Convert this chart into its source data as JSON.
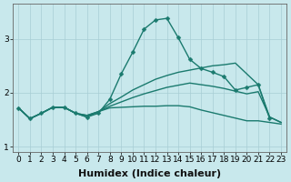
{
  "xlabel": "Humidex (Indice chaleur)",
  "background_color": "#c8e8ec",
  "grid_color": "#a8cdd4",
  "line_color": "#1a7a6e",
  "xlim": [
    -0.5,
    23.5
  ],
  "ylim": [
    0.9,
    3.65
  ],
  "xtick_labels": [
    "0",
    "1",
    "2",
    "3",
    "4",
    "5",
    "6",
    "7",
    "8",
    "9",
    "10",
    "11",
    "12",
    "13",
    "14",
    "15",
    "16",
    "17",
    "18",
    "19",
    "20",
    "21",
    "22",
    "23"
  ],
  "ytick_vals": [
    1,
    2,
    3
  ],
  "line1_x": [
    0,
    1,
    2,
    3,
    4,
    5,
    6,
    7,
    8,
    9,
    10,
    11,
    12,
    13,
    14,
    15,
    16,
    17,
    18,
    19,
    20,
    21,
    22
  ],
  "line1_y": [
    1.72,
    1.52,
    1.62,
    1.73,
    1.73,
    1.62,
    1.55,
    1.62,
    1.88,
    2.35,
    2.75,
    3.18,
    3.35,
    3.38,
    3.02,
    2.62,
    2.45,
    2.38,
    2.3,
    2.05,
    2.1,
    2.15,
    1.52
  ],
  "line2_x": [
    0,
    1,
    2,
    3,
    4,
    5,
    6,
    7,
    8,
    9,
    10,
    11,
    12,
    13,
    14,
    15,
    16,
    17,
    18,
    19,
    20,
    21,
    22,
    23
  ],
  "line2_y": [
    1.72,
    1.52,
    1.62,
    1.73,
    1.73,
    1.62,
    1.58,
    1.65,
    1.8,
    1.92,
    2.05,
    2.15,
    2.25,
    2.32,
    2.38,
    2.42,
    2.46,
    2.5,
    2.52,
    2.55,
    2.35,
    2.15,
    1.55,
    1.45
  ],
  "line3_x": [
    0,
    1,
    2,
    3,
    4,
    5,
    6,
    7,
    8,
    9,
    10,
    11,
    12,
    13,
    14,
    15,
    16,
    17,
    18,
    19,
    20,
    21,
    22,
    23
  ],
  "line3_y": [
    1.72,
    1.52,
    1.62,
    1.73,
    1.73,
    1.62,
    1.58,
    1.65,
    1.75,
    1.83,
    1.91,
    1.98,
    2.04,
    2.1,
    2.14,
    2.18,
    2.15,
    2.12,
    2.08,
    2.03,
    1.98,
    2.02,
    1.55,
    1.45
  ],
  "line4_x": [
    0,
    1,
    2,
    3,
    4,
    5,
    6,
    7,
    8,
    9,
    10,
    11,
    12,
    13,
    14,
    15,
    16,
    17,
    18,
    19,
    20,
    21,
    22,
    23
  ],
  "line4_y": [
    1.72,
    1.52,
    1.62,
    1.73,
    1.73,
    1.62,
    1.55,
    1.65,
    1.72,
    1.73,
    1.74,
    1.75,
    1.75,
    1.76,
    1.76,
    1.74,
    1.68,
    1.63,
    1.58,
    1.53,
    1.48,
    1.48,
    1.45,
    1.42
  ],
  "line_width": 1.0,
  "marker_size": 2.5,
  "tick_fontsize": 6.5,
  "xlabel_fontsize": 8
}
